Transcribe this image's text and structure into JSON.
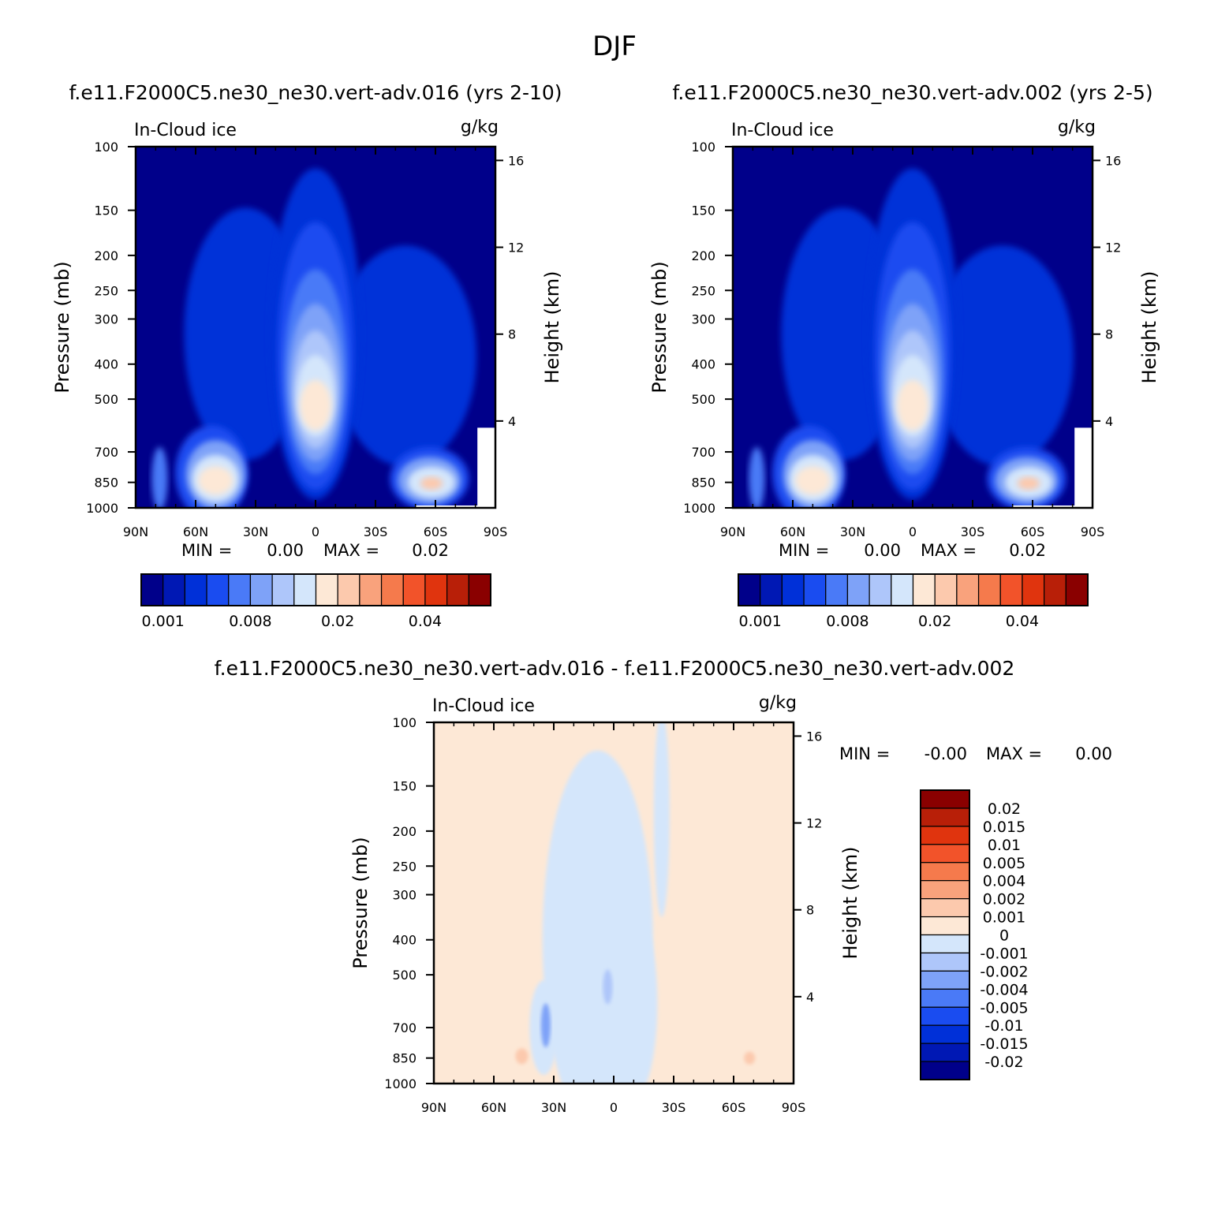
{
  "figure": {
    "season": "DJF",
    "panel_titles": [
      "f.e11.F2000C5.ne30_ne30.vert-adv.016 (yrs 2-10)",
      "f.e11.F2000C5.ne30_ne30.vert-adv.002 (yrs 2-5)",
      "f.e11.F2000C5.ne30_ne30.vert-adv.016 - f.e11.F2000C5.ne30_ne30.vert-adv.002"
    ]
  },
  "colors": {
    "abs_scale": [
      "#00008a",
      "#0018b4",
      "#0030d8",
      "#1a4cf0",
      "#4a7af7",
      "#7ea2f8",
      "#aec6fa",
      "#d4e6fb",
      "#fde8d6",
      "#fcc9ad",
      "#f9a27c",
      "#f57a4c",
      "#f2532a",
      "#e0340e",
      "#b81f08",
      "#8a0000"
    ],
    "diff_scale": [
      "#00008a",
      "#0018b4",
      "#0030d8",
      "#1a4cf0",
      "#4a7af7",
      "#7ea2f8",
      "#aec6fa",
      "#d4e6fb",
      "#fde8d6",
      "#fcc9ad",
      "#f9a27c",
      "#f57a4c",
      "#f2532a",
      "#e0340e",
      "#b81f08",
      "#8a0000"
    ]
  },
  "chart_data": [
    {
      "type": "heatmap",
      "panel": "left",
      "corner_left": "In-Cloud ice",
      "corner_right": "g/kg",
      "ylabel": "Pressure (mb)",
      "y2label": "Height (km)",
      "xticks": [
        "90N",
        "60N",
        "30N",
        "0",
        "30S",
        "60S",
        "90S"
      ],
      "yticks": [
        "100",
        "150",
        "200",
        "250",
        "300",
        "400",
        "500",
        "700",
        "850",
        "1000"
      ],
      "y2ticks": [
        "16",
        "12",
        "8",
        "4"
      ],
      "stats": {
        "min_label": "MIN =",
        "min": "0.00",
        "max_label": "MAX =",
        "max": "0.02"
      },
      "colorbar_labels": [
        "0.001",
        "0.008",
        "0.02",
        "0.04"
      ],
      "features": [
        {
          "lat": 0,
          "pressure": 500,
          "level": 8
        },
        {
          "lat": 55,
          "pressure": 850,
          "level": 8
        },
        {
          "lat": -60,
          "pressure": 850,
          "level": 8
        }
      ]
    },
    {
      "type": "heatmap",
      "panel": "right",
      "corner_left": "In-Cloud ice",
      "corner_right": "g/kg",
      "ylabel": "Pressure (mb)",
      "y2label": "Height (km)",
      "xticks": [
        "90N",
        "60N",
        "30N",
        "0",
        "30S",
        "60S",
        "90S"
      ],
      "yticks": [
        "100",
        "150",
        "200",
        "250",
        "300",
        "400",
        "500",
        "700",
        "850",
        "1000"
      ],
      "y2ticks": [
        "16",
        "12",
        "8",
        "4"
      ],
      "stats": {
        "min_label": "MIN =",
        "min": "0.00",
        "max_label": "MAX =",
        "max": "0.02"
      },
      "colorbar_labels": [
        "0.001",
        "0.008",
        "0.02",
        "0.04"
      ]
    },
    {
      "type": "heatmap",
      "panel": "difference",
      "corner_left": "In-Cloud ice",
      "corner_right": "g/kg",
      "ylabel": "Pressure (mb)",
      "y2label": "Height (km)",
      "xticks": [
        "90N",
        "60N",
        "30N",
        "0",
        "30S",
        "60S",
        "90S"
      ],
      "yticks": [
        "100",
        "150",
        "200",
        "250",
        "300",
        "400",
        "500",
        "700",
        "850",
        "1000"
      ],
      "y2ticks": [
        "16",
        "12",
        "8",
        "4"
      ],
      "stats": {
        "min_label": "MIN =",
        "min": "-0.00",
        "max_label": "MAX =",
        "max": "0.00"
      },
      "colorbar_labels": [
        "0.02",
        "0.015",
        "0.01",
        "0.005",
        "0.004",
        "0.002",
        "0.001",
        "0",
        "-0.001",
        "-0.002",
        "-0.004",
        "-0.005",
        "-0.01",
        "-0.015",
        "-0.02"
      ]
    }
  ]
}
